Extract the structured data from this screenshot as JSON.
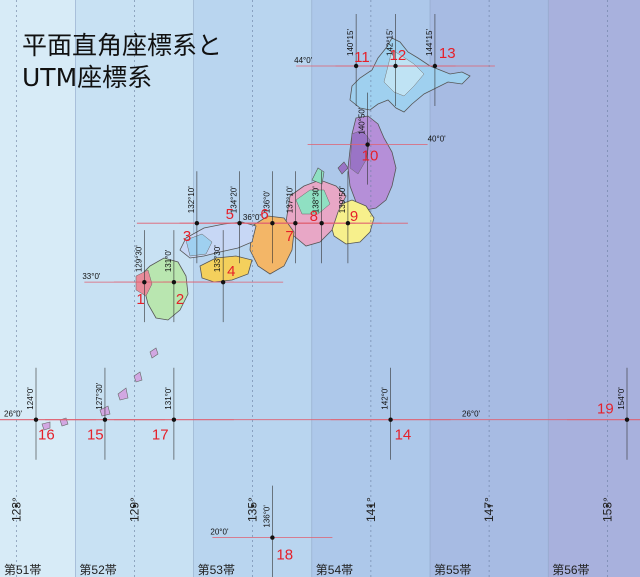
{
  "title_lines": [
    "平面直角座標系と",
    "UTM座標系"
  ],
  "zone_colors": [
    "#d7ebf7",
    "#c8e1f3",
    "#b9d5ef",
    "#adc8ea",
    "#a7bbe3",
    "#a8b1dd"
  ],
  "zones": [
    {
      "label": "第51帯",
      "meridian": "123°"
    },
    {
      "label": "第52帯",
      "meridian": "129°"
    },
    {
      "label": "第53帯",
      "meridian": "135°"
    },
    {
      "label": "第54帯",
      "meridian": "141°"
    },
    {
      "label": "第55帯",
      "meridian": "147°"
    },
    {
      "label": "第56帯",
      "meridian": "153°"
    }
  ],
  "systems": [
    {
      "number": "1",
      "lon": "129°30'",
      "lat": "33°0'"
    },
    {
      "number": "2",
      "lon": "131°0'",
      "lat": "33°0'"
    },
    {
      "number": "3",
      "lon": "132°10'",
      "lat": "36°0'"
    },
    {
      "number": "4",
      "lon": "133°30'",
      "lat": "33°0'"
    },
    {
      "number": "5",
      "lon": "134°20'",
      "lat": "36°0'"
    },
    {
      "number": "6",
      "lon": "136°0'",
      "lat": "36°0'"
    },
    {
      "number": "7",
      "lon": "137°10'",
      "lat": "36°0'"
    },
    {
      "number": "8",
      "lon": "138°30'",
      "lat": "36°0'"
    },
    {
      "number": "9",
      "lon": "139°50'",
      "lat": "36°0'"
    },
    {
      "number": "10",
      "lon": "140°50'",
      "lat": "40°0'"
    },
    {
      "number": "11",
      "lon": "140°15'",
      "lat": "44°0'"
    },
    {
      "number": "12",
      "lon": "142°15'",
      "lat": "44°0'"
    },
    {
      "number": "13",
      "lon": "144°15'",
      "lat": "44°0'"
    },
    {
      "number": "14",
      "lon": "142°0'",
      "lat": "26°0'"
    },
    {
      "number": "15",
      "lon": "127°30'",
      "lat": "26°0'"
    },
    {
      "number": "16",
      "lon": "124°0'",
      "lat": "26°0'"
    },
    {
      "number": "17",
      "lon": "131°0'",
      "lat": "26°0'"
    },
    {
      "number": "18",
      "lon": "136°0'",
      "lat": "20°0'"
    },
    {
      "number": "19",
      "lon": "154°0'",
      "lat": "26°0'"
    }
  ],
  "parallel_labels": [
    "44°0'",
    "40°0'",
    "36°0'",
    "33°0'",
    "26°0'",
    "20°0'"
  ],
  "label_color": "#e5202a",
  "prefecture_colors": [
    "#f4d05c",
    "#f3b667",
    "#d2a7e2",
    "#8fe0c2",
    "#b9e6b0",
    "#f7f08c",
    "#e8a7c6",
    "#c7d7f5",
    "#9fd0f0",
    "#cfe6a2"
  ]
}
